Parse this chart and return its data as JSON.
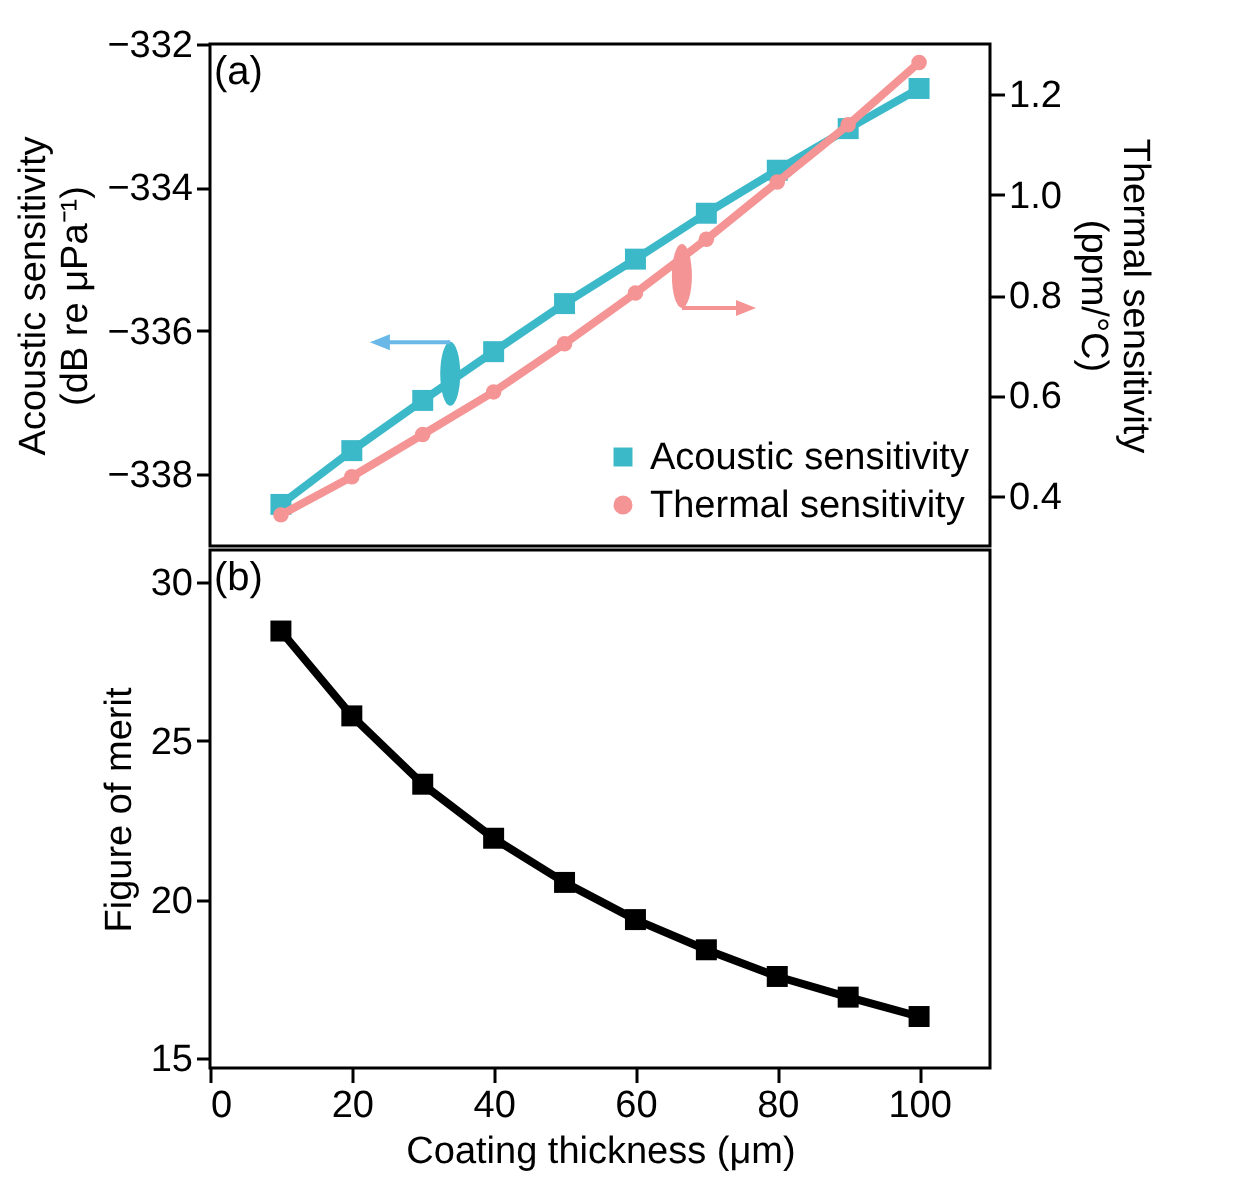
{
  "chart_data": [
    {
      "type": "line",
      "annotations": [
        "(a)"
      ],
      "x": [
        10,
        20,
        30,
        40,
        50,
        60,
        70,
        80,
        90,
        100
      ],
      "series": [
        {
          "name": "Acoustic sensitivity",
          "color": "#3cb9c9",
          "marker": "square",
          "values": [
            -338.42,
            -337.67,
            -336.97,
            -336.29,
            -335.62,
            -335.0,
            -334.36,
            -333.76,
            -333.18,
            -332.62
          ]
        },
        {
          "name": "Thermal sensitivity",
          "color": "#f59494",
          "marker": "circle",
          "axis": "y2",
          "values": [
            0.362,
            0.438,
            0.522,
            0.607,
            0.703,
            0.804,
            0.911,
            1.025,
            1.139,
            1.263
          ]
        }
      ],
      "ylabel": "Acoustic sensitivity\n(dB re μPa⁻¹)",
      "y2label": "Thermal sensitivity\n(ppm/°C)",
      "xlim": [
        0,
        110
      ],
      "xticks": [
        0,
        20,
        40,
        60,
        80,
        100
      ],
      "ylim": [
        -339,
        -332
      ],
      "yticks": [
        -338,
        -336,
        -334,
        -332
      ],
      "y2lim": [
        0.3,
        1.3
      ],
      "y2ticks": [
        0.4,
        0.6,
        0.8,
        {
          "value": 1,
          "label": "1.0"
        },
        1.2
      ],
      "tick_labels": "y",
      "legend": "bottom right"
    },
    {
      "type": "line",
      "annotations": [
        "(b)"
      ],
      "x": [
        10,
        20,
        30,
        40,
        50,
        60,
        70,
        80,
        90,
        100
      ],
      "series": [
        {
          "color": "#000000",
          "marker": "square",
          "values": [
            28.45,
            25.78,
            23.63,
            21.93,
            20.54,
            19.37,
            18.42,
            17.58,
            16.93,
            16.32
          ]
        }
      ],
      "xlabel": "Coating thickness (μm)",
      "ylabel": "Figure of merit",
      "xlim": [
        0,
        110
      ],
      "xticks": [
        0,
        20,
        40,
        60,
        80,
        100
      ],
      "ylim": [
        14.7,
        31
      ],
      "yticks": [
        15,
        20,
        25,
        30
      ]
    }
  ]
}
